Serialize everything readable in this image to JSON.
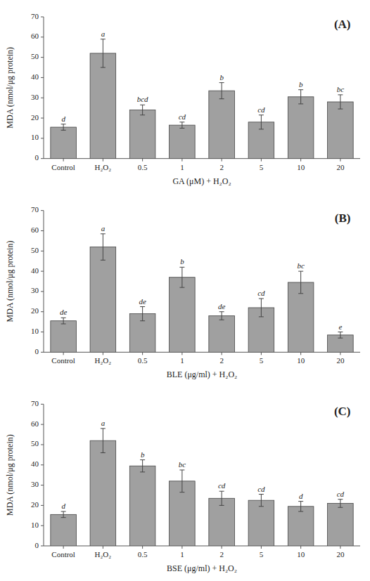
{
  "chart_data": [
    {
      "type": "bar",
      "title": "(A)",
      "categories": [
        "Control",
        "H₂O₂",
        "0.5",
        "1",
        "2",
        "5",
        "10",
        "20"
      ],
      "values": [
        15.5,
        52.0,
        24.0,
        16.5,
        33.5,
        18.0,
        30.5,
        28.0
      ],
      "errors": [
        1.5,
        7.0,
        2.5,
        1.5,
        4.0,
        3.5,
        3.5,
        3.5
      ],
      "annotations": [
        "d",
        "a",
        "bcd",
        "cd",
        "b",
        "cd",
        "b",
        "bc"
      ],
      "xlabel": "GA (μM) + H₂O₂",
      "ylabel": "MDA (nmol/μg protein)",
      "color": "#a0a0a0",
      "ylim": [
        0,
        70
      ],
      "yticks": [
        0,
        10,
        20,
        30,
        40,
        50,
        60,
        70
      ]
    },
    {
      "type": "bar",
      "title": "(B)",
      "categories": [
        "Control",
        "H₂O₂",
        "0.5",
        "1",
        "2",
        "5",
        "10",
        "20"
      ],
      "values": [
        15.5,
        52.0,
        19.0,
        37.0,
        18.0,
        22.0,
        34.5,
        8.5
      ],
      "errors": [
        1.5,
        6.5,
        3.5,
        5.0,
        2.0,
        4.5,
        5.5,
        1.5
      ],
      "annotations": [
        "de",
        "a",
        "de",
        "b",
        "de",
        "cd",
        "bc",
        "e"
      ],
      "xlabel": "BLE (μg/ml) + H₂O₂",
      "ylabel": "MDA (nmol/μg protein)",
      "color": "#a0a0a0",
      "ylim": [
        0,
        70
      ],
      "yticks": [
        0,
        10,
        20,
        30,
        40,
        50,
        60,
        70
      ]
    },
    {
      "type": "bar",
      "title": "(C)",
      "categories": [
        "Control",
        "H₂O₂",
        "0.5",
        "1",
        "2",
        "5",
        "10",
        "20"
      ],
      "values": [
        15.5,
        52.0,
        39.5,
        32.0,
        23.5,
        22.5,
        19.5,
        21.0
      ],
      "errors": [
        1.5,
        6.0,
        3.0,
        5.5,
        3.5,
        3.0,
        2.5,
        2.0
      ],
      "annotations": [
        "d",
        "a",
        "b",
        "bc",
        "cd",
        "cd",
        "d",
        "cd"
      ],
      "xlabel": "BSE (μg/ml) + H₂O₂",
      "ylabel": "MDA (nmol/μg protein)",
      "color": "#a0a0a0",
      "ylim": [
        0,
        70
      ],
      "yticks": [
        0,
        10,
        20,
        30,
        40,
        50,
        60,
        70
      ]
    }
  ]
}
